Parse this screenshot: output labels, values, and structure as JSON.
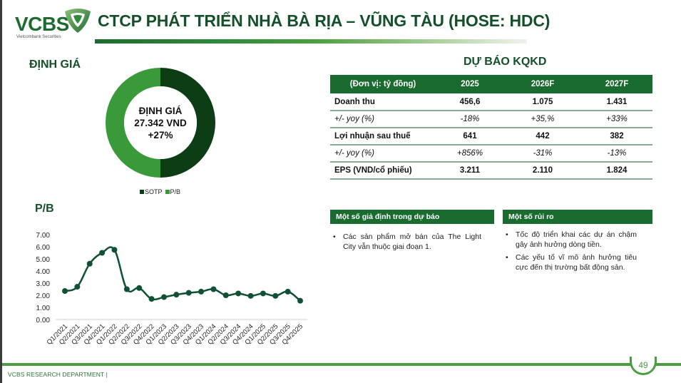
{
  "header": {
    "logo_text": "VCBS",
    "logo_sub": "Vietcombank Securities",
    "title": "CTCP PHÁT TRIỂN NHÀ BÀ RỊA – VŨNG TÀU (HOSE: HDC)"
  },
  "valuation": {
    "section_title": "ĐỊNH GIÁ",
    "center_label": "ĐỊNH GIÁ",
    "center_value": "27.342 VND",
    "center_change": "+27%",
    "legend": [
      {
        "label": "SOTP",
        "color": "#0d3d14"
      },
      {
        "label": "P/B",
        "color": "#3a9a3a"
      }
    ]
  },
  "forecast": {
    "section_title": "DỰ BÁO KQKD",
    "columns": [
      "(Đơn vị: tỷ đồng)",
      "2025",
      "2026F",
      "2027F"
    ],
    "rows": [
      {
        "label": "Doanh thu",
        "values": [
          "456,6",
          "1.075",
          "1.431"
        ],
        "style": "bold"
      },
      {
        "label": "+/-  yoy (%)",
        "values": [
          "-18%",
          "+35,%",
          "+33%"
        ],
        "style": "italic"
      },
      {
        "label": "Lợi nhuận sau thuế",
        "values": [
          "641",
          "442",
          "382"
        ],
        "style": "bold"
      },
      {
        "label": "+/-  yoy (%)",
        "values": [
          "+856%",
          "-31%",
          "-13%"
        ],
        "style": "italic"
      },
      {
        "label": "EPS (VND/cổ phiếu)",
        "values": [
          "3.211",
          "2.110",
          "1.824"
        ],
        "style": "bold"
      }
    ]
  },
  "assumptions": {
    "title": "Một số giả định trong dự báo",
    "items": [
      "Các sản phẩm mở bán của The Light City vẫn thuộc giai đoạn 1."
    ]
  },
  "risks": {
    "title": "Một số rủi ro",
    "items": [
      "Tốc độ triển khai các dự án chậm gây ảnh hưởng dòng tiền.",
      "Các yếu tố vĩ mô ảnh hưởng tiêu cực đến thị trường bất động sản."
    ]
  },
  "pb_section_title": "P/B",
  "chart_data": [
    {
      "type": "pie",
      "title": "ĐỊNH GIÁ",
      "categories": [
        "SOTP",
        "P/B"
      ],
      "values": [
        50,
        50
      ],
      "colors": [
        "#0d3d14",
        "#3a9a3a"
      ],
      "annotations": [
        "ĐỊNH GIÁ",
        "27.342 VND",
        "+27%"
      ],
      "legend_position": "bottom"
    },
    {
      "type": "line",
      "title": "P/B",
      "x": [
        "Q1/2021",
        "Q2/2021",
        "Q3/2021",
        "Q4/2021",
        "Q1/2022",
        "Q2/2022",
        "Q3/2022",
        "Q4/2022",
        "Q1/2023",
        "Q2/2023",
        "Q3/2023",
        "Q4/2023",
        "Q1/2024",
        "Q2/2024",
        "Q3/2024",
        "Q4/2024",
        "Q1/2025",
        "Q2/2025",
        "Q3/2025",
        "Q4/2025"
      ],
      "series": [
        {
          "name": "P/B",
          "values": [
            2.35,
            2.7,
            4.6,
            5.5,
            5.75,
            2.5,
            2.6,
            1.7,
            1.85,
            2.05,
            2.2,
            2.3,
            2.5,
            2.0,
            2.15,
            1.95,
            2.15,
            1.95,
            2.3,
            1.55
          ]
        }
      ],
      "yticks": [
        "0.00",
        "1.00",
        "2.00",
        "3.00",
        "4.00",
        "5.00",
        "6.00",
        "7.00"
      ],
      "ylim": [
        0,
        7
      ],
      "xlabel": "",
      "ylabel": "",
      "grid": false,
      "line_color": "#0f5132"
    }
  ],
  "footer": {
    "department": "VCBS RESEARCH DEPARTMENT |",
    "page_number": "49"
  }
}
